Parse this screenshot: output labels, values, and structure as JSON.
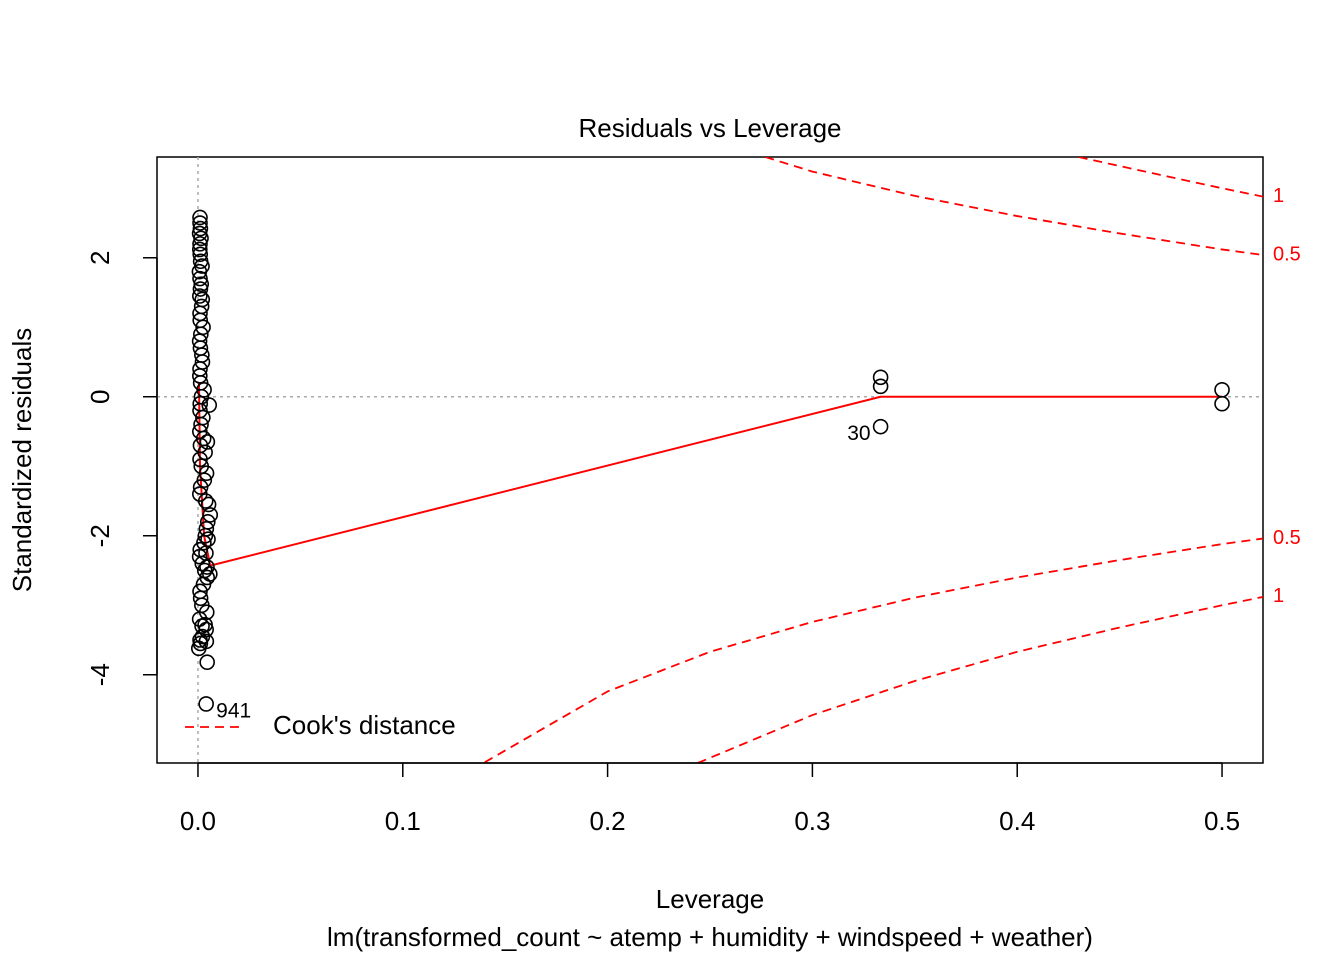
{
  "chart_data": {
    "type": "scatter",
    "title": "Residuals vs Leverage",
    "xlabel": "Leverage",
    "subtitle": "lm(transformed_count ~ atemp + humidity + windspeed + weather)",
    "ylabel": "Standardized residuals",
    "xlim": [
      -0.02,
      0.52
    ],
    "ylim": [
      -5.27,
      3.45
    ],
    "xticks": [
      {
        "value": 0,
        "label": "0.0"
      },
      0.1,
      0.2,
      0.3,
      0.4,
      0.5
    ],
    "yticks": [
      -4,
      -2,
      0,
      2
    ],
    "reference_lines": {
      "x": 0,
      "y": 0,
      "color": "#aaaaaa"
    },
    "series": [
      {
        "name": "residuals",
        "color": "#000000",
        "x": [
          0.001,
          0.001,
          0.0012,
          0.0008,
          0.0015,
          0.001,
          0.0009,
          0.0011,
          0.0013,
          0.002,
          0.0007,
          0.001,
          0.0016,
          0.0012,
          0.0009,
          0.0021,
          0.0018,
          0.001,
          0.0011,
          0.0025,
          0.0014,
          0.0008,
          0.0012,
          0.0019,
          0.0022,
          0.001,
          0.0009,
          0.0013,
          0.003,
          0.0017,
          0.0011,
          0.001,
          0.0024,
          0.0015,
          0.0009,
          0.0028,
          0.0012,
          0.0035,
          0.001,
          0.0016,
          0.0042,
          0.0031,
          0.0013,
          0.0009,
          0.0038,
          0.0055,
          0.0046,
          0.006,
          0.0052,
          0.0048,
          0.0041,
          0.0036,
          0.0029,
          0.0011,
          0.0008,
          0.0021,
          0.0033,
          0.0045,
          0.0027,
          0.001,
          0.0013,
          0.0019,
          0.0043,
          0.0008,
          0.002,
          0.004,
          0.0058,
          0.0049,
          0.0039,
          0.0044,
          0.001,
          0.0004,
          0.0012,
          0.0022,
          0.0035,
          0.0041,
          0.0045,
          0.004,
          0.3333,
          0.3333,
          0.3333,
          0.5,
          0.5
        ],
        "y": [
          2.58,
          2.5,
          2.42,
          2.35,
          2.28,
          2.2,
          2.12,
          2.05,
          1.95,
          1.88,
          1.8,
          1.7,
          1.62,
          1.55,
          1.45,
          1.4,
          1.3,
          1.2,
          1.1,
          1.0,
          0.9,
          0.8,
          0.7,
          0.6,
          0.5,
          0.4,
          0.3,
          0.2,
          0.1,
          0.0,
          -0.1,
          -0.2,
          -0.3,
          -0.4,
          -0.5,
          -0.6,
          -0.7,
          -0.8,
          -0.9,
          -1.0,
          -1.1,
          -1.2,
          -1.3,
          -1.4,
          -1.5,
          -0.12,
          -0.65,
          -1.7,
          -1.55,
          -1.8,
          -1.9,
          -2.0,
          -2.1,
          -2.2,
          -2.3,
          -2.4,
          -2.5,
          -2.6,
          -2.7,
          -2.8,
          -2.9,
          -3.0,
          -3.1,
          -3.2,
          -3.3,
          -3.35,
          -2.55,
          -2.05,
          -2.25,
          -2.45,
          -3.5,
          -3.62,
          -3.55,
          -3.45,
          -3.28,
          -3.52,
          -3.82,
          -4.42,
          0.28,
          0.15,
          -0.43,
          0.1,
          -0.1
        ]
      }
    ],
    "annotations": [
      {
        "text": "941",
        "x": 0.004,
        "y": -4.42
      },
      {
        "text": "30",
        "x": 0.3333,
        "y": -0.43
      }
    ],
    "smoother": {
      "color": "#ff0000",
      "x": [
        0.0005,
        0.001,
        0.003,
        0.006,
        0.3333,
        0.5
      ],
      "y": [
        0.2,
        -1.0,
        -2.0,
        -2.43,
        0.0,
        0.0
      ]
    },
    "cook_contours": {
      "color": "#ff0000",
      "legend": "Cook's distance",
      "lines": [
        {
          "label": "1",
          "x": [
            0.43,
            0.45,
            0.5,
            0.52
          ],
          "y": [
            3.45,
            3.32,
            3.0,
            2.88
          ]
        },
        {
          "label": "0.5",
          "x": [
            0.277,
            0.3,
            0.35,
            0.4,
            0.45,
            0.5,
            0.52
          ],
          "y": [
            3.45,
            3.24,
            2.89,
            2.6,
            2.35,
            2.12,
            2.04
          ]
        },
        {
          "label": "0.5",
          "x": [
            0.14,
            0.2,
            0.25,
            0.3,
            0.35,
            0.4,
            0.45,
            0.5,
            0.52
          ],
          "y": [
            -5.26,
            -4.24,
            -3.67,
            -3.24,
            -2.89,
            -2.6,
            -2.35,
            -2.12,
            -2.04
          ]
        },
        {
          "label": "1",
          "x": [
            0.244,
            0.3,
            0.35,
            0.4,
            0.45,
            0.5,
            0.52
          ],
          "y": [
            -5.27,
            -4.58,
            -4.09,
            -3.67,
            -3.32,
            -3.0,
            -2.88
          ]
        }
      ]
    }
  }
}
